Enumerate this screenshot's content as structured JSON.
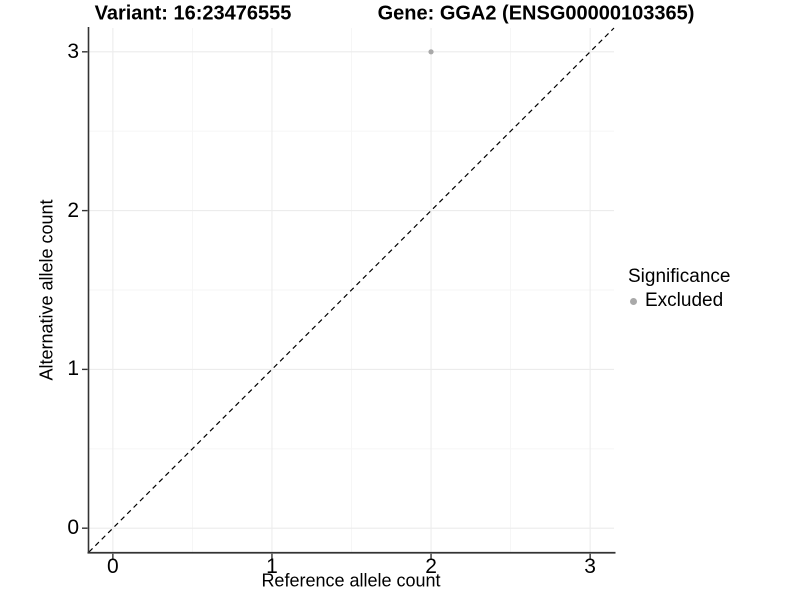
{
  "chart_data": {
    "type": "scatter",
    "title_left": "Variant: 16:23476555",
    "title_right": "Gene: GGA2 (ENSG00000103365)",
    "xlabel": "Reference allele count",
    "ylabel": "Alternative allele count",
    "xlim": [
      -0.15,
      3.15
    ],
    "ylim": [
      -0.15,
      3.15
    ],
    "x_ticks": [
      0,
      1,
      2,
      3
    ],
    "y_ticks": [
      0,
      1,
      2,
      3
    ],
    "x_minor": [
      0.5,
      1.5,
      2.5
    ],
    "y_minor": [
      0.5,
      1.5,
      2.5
    ],
    "grid": true,
    "series": [
      {
        "name": "Excluded",
        "color": "#a9a9a9",
        "points": [
          [
            2,
            3
          ]
        ]
      }
    ],
    "reference_line": {
      "style": "dashed",
      "slope": 1,
      "intercept": 0,
      "color": "#000000"
    },
    "legend": {
      "title": "Significance",
      "position": "right",
      "entries": [
        {
          "label": "Excluded",
          "color": "#a9a9a9"
        }
      ]
    },
    "colors": {
      "background": "#ffffff",
      "grid_major": "#ececec",
      "grid_minor": "#f5f5f5",
      "axis_line": "#333333",
      "tick_mark": "#333333",
      "text": "#000000"
    }
  }
}
